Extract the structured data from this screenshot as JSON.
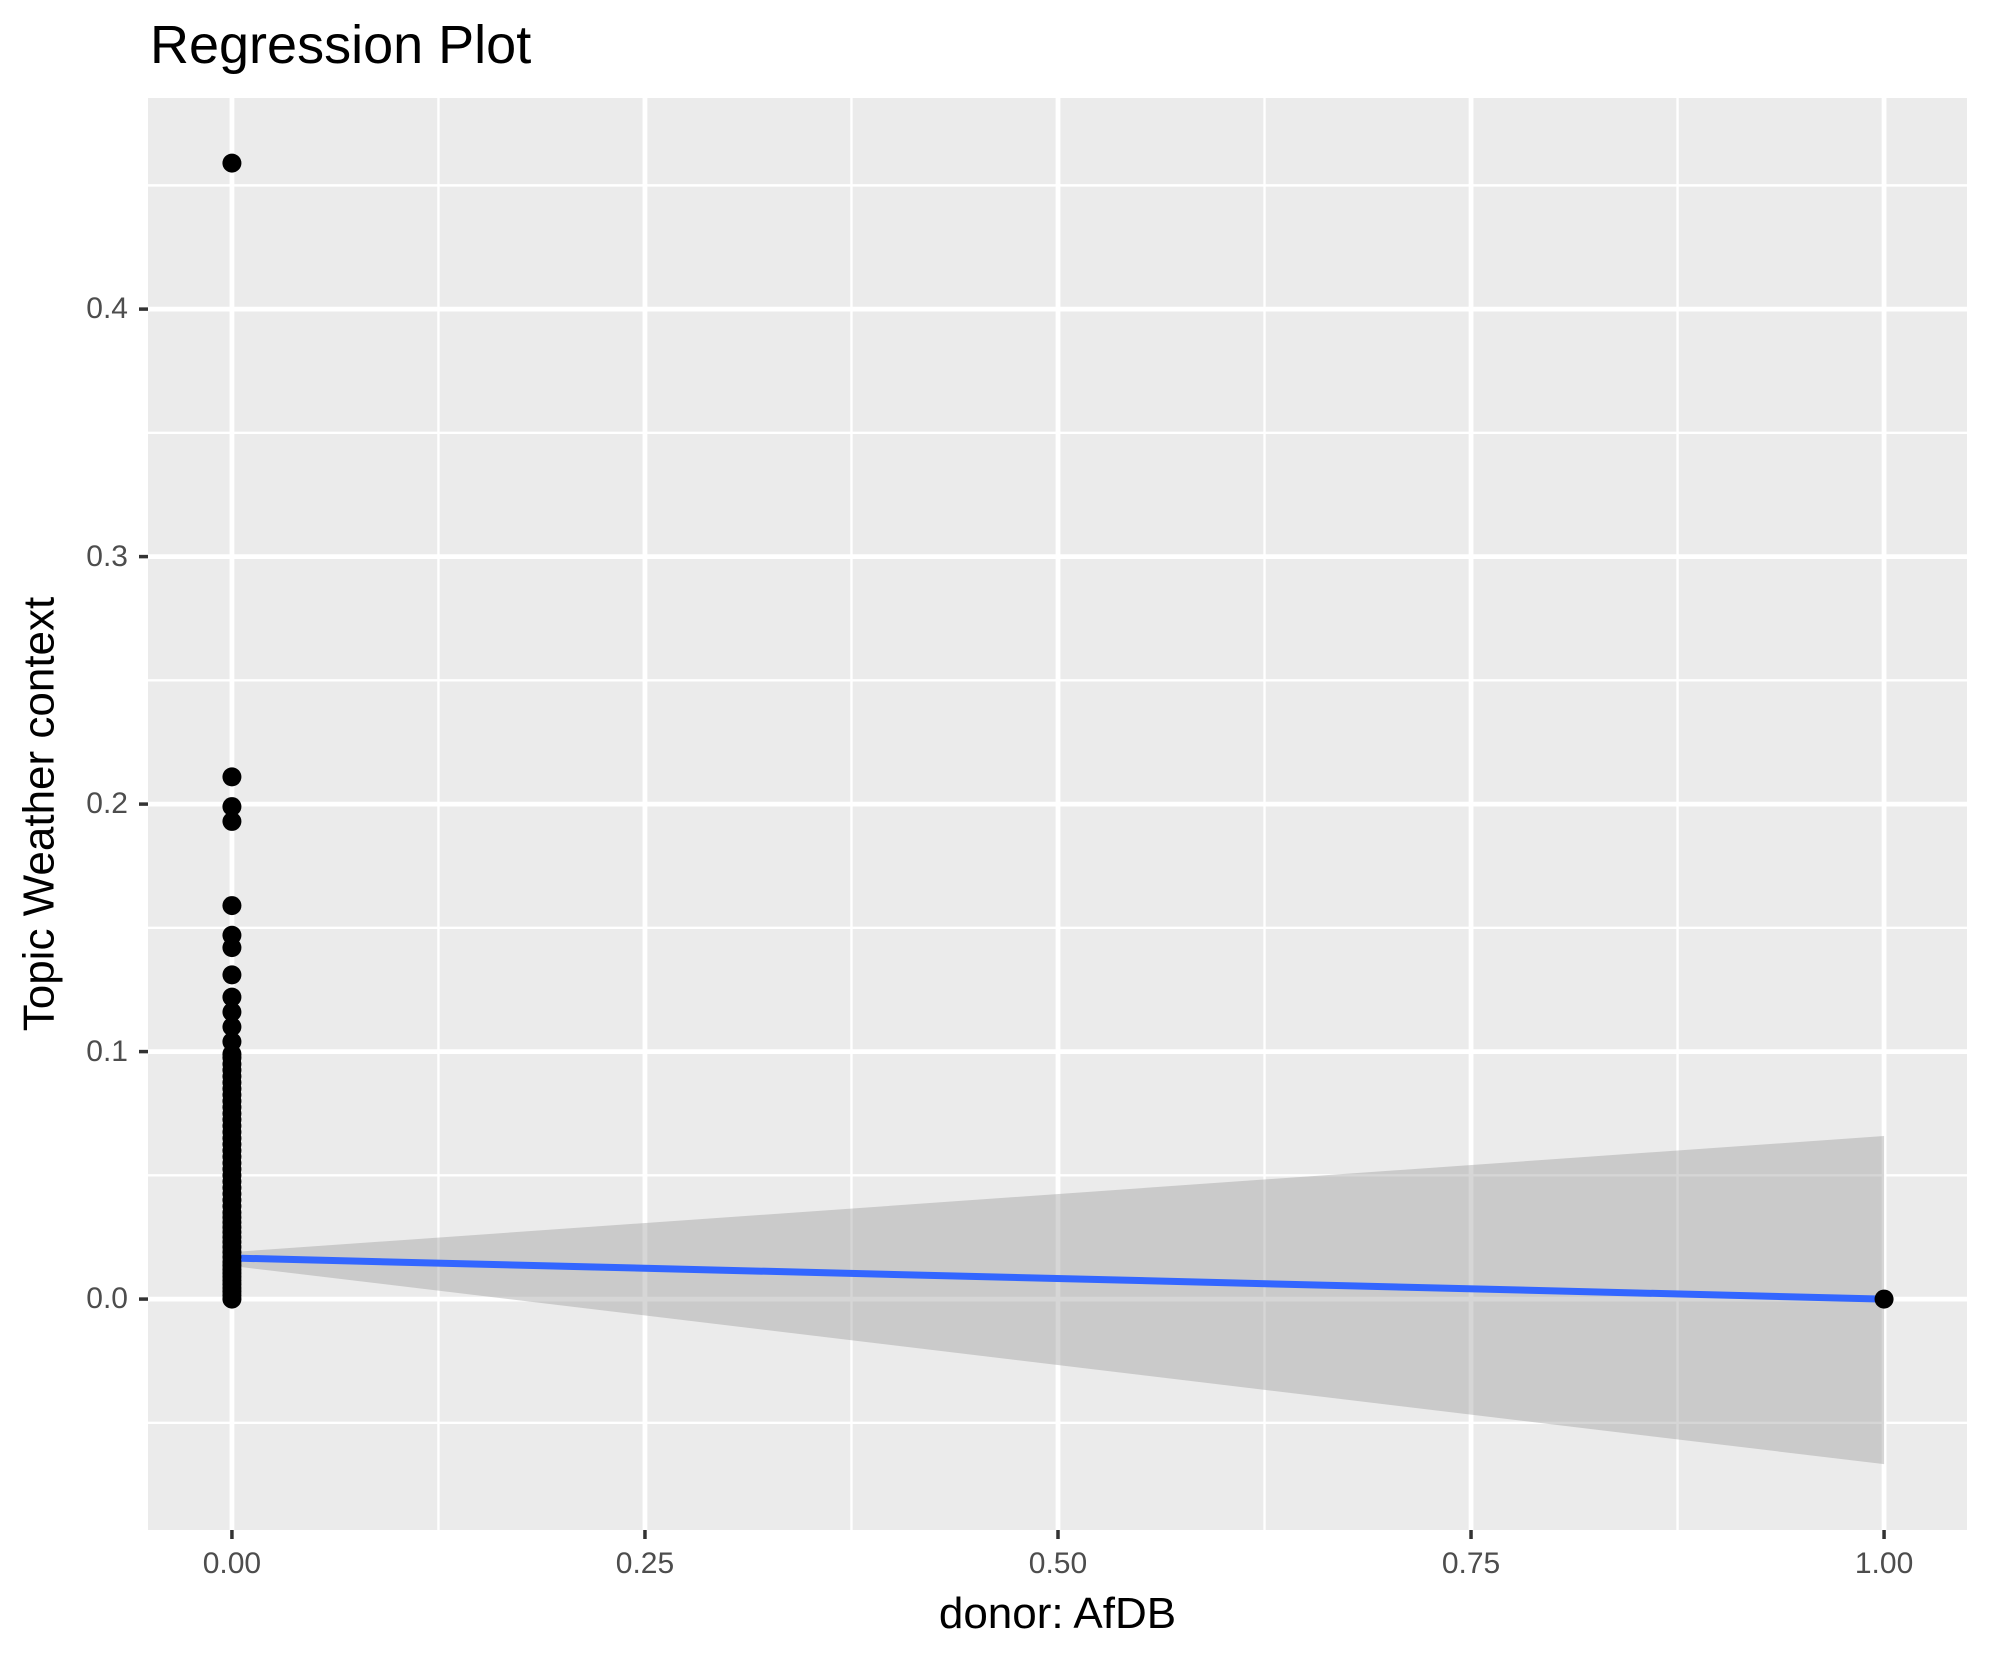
{
  "chart_data": {
    "type": "scatter",
    "title": "Regression Plot",
    "xlabel": "donor: AfDB",
    "ylabel": "Topic Weather context",
    "xlim": [
      -0.0508,
      1.0502
    ],
    "ylim": [
      -0.0933,
      0.4853
    ],
    "grid": true,
    "legend": "none",
    "x_major_ticks": [
      0,
      0.25,
      0.5,
      0.75,
      1
    ],
    "x_tick_labels": [
      "0.00",
      "0.25",
      "0.50",
      "0.75",
      "1.00"
    ],
    "x_minor_ticks": [
      0.125,
      0.375,
      0.625,
      0.875
    ],
    "y_major_ticks": [
      0,
      0.1,
      0.2,
      0.3,
      0.4
    ],
    "y_tick_labels": [
      "0.0",
      "0.1",
      "0.2",
      "0.3",
      "0.4"
    ],
    "y_minor_ticks": [
      -0.05,
      0.05,
      0.15,
      0.25,
      0.35,
      0.45
    ],
    "series": [
      {
        "name": "observations-donor0",
        "type": "points",
        "x_value": 0,
        "y_values": [
          0.0,
          0.0015,
          0.003,
          0.0045,
          0.006,
          0.0075,
          0.009,
          0.0105,
          0.012,
          0.0135,
          0.015,
          0.017,
          0.019,
          0.021,
          0.023,
          0.025,
          0.027,
          0.029,
          0.031,
          0.033,
          0.035,
          0.0375,
          0.04,
          0.0425,
          0.045,
          0.0475,
          0.05,
          0.0525,
          0.055,
          0.0575,
          0.06,
          0.0625,
          0.065,
          0.0675,
          0.07,
          0.0725,
          0.075,
          0.0775,
          0.08,
          0.0825,
          0.085,
          0.0875,
          0.09,
          0.0925,
          0.095,
          0.0975,
          0.099,
          0.104,
          0.11,
          0.116,
          0.122,
          0.131,
          0.142,
          0.147,
          0.159,
          0.193,
          0.199,
          0.211,
          0.459
        ]
      },
      {
        "name": "observation-donor1",
        "type": "points",
        "x_value": 1,
        "y_values": [
          0.0
        ]
      },
      {
        "name": "regression-line",
        "type": "line",
        "x": [
          0,
          1
        ],
        "y": [
          0.0166,
          0.0
        ]
      },
      {
        "name": "confidence-band",
        "type": "area",
        "x": [
          0,
          1
        ],
        "y_upper": [
          0.019,
          0.0659
        ],
        "y_lower": [
          0.0134,
          -0.0667
        ]
      }
    ],
    "colors": {
      "line": "#3366FF",
      "band": "rgba(153,153,153,0.4)",
      "point": "#000000",
      "panel_background": "#EBEBEB",
      "gridline": "#FFFFFF",
      "tick_label": "#4D4D4D",
      "tick_mark": "#333333",
      "title": "#000000"
    }
  }
}
